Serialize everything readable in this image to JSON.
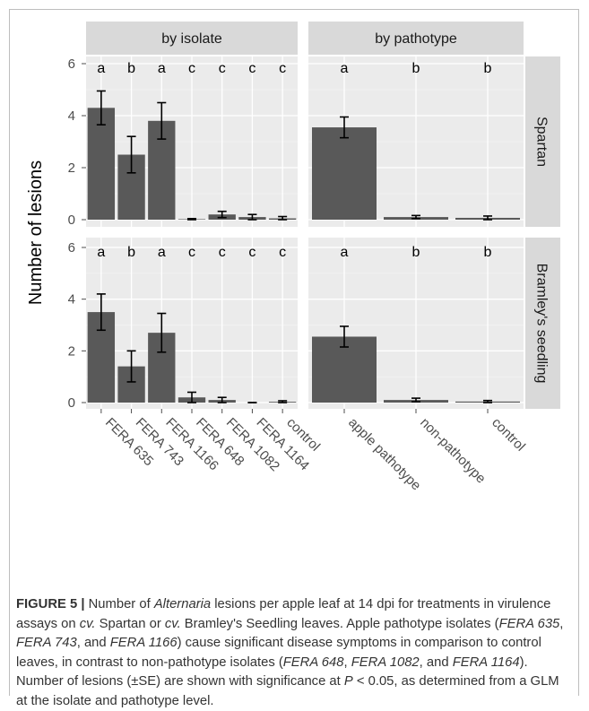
{
  "chart_data": {
    "type": "bar",
    "ylabel": "Number of lesions",
    "ylim": [
      0,
      6
    ],
    "yticks": [
      0,
      2,
      4,
      6
    ],
    "grid": true,
    "facet_columns": [
      "by isolate",
      "by pathotype"
    ],
    "facet_rows": [
      "Spartan",
      "Bramley's seedling"
    ],
    "panels": [
      {
        "column": "by isolate",
        "row": "Spartan",
        "categories": [
          "FERA 635",
          "FERA 743",
          "FERA 1166",
          "FERA 648",
          "FERA 1082",
          "FERA 1164",
          "control"
        ],
        "values": [
          4.3,
          2.5,
          3.8,
          0.02,
          0.2,
          0.1,
          0.05
        ],
        "error": [
          0.65,
          0.7,
          0.7,
          0.02,
          0.12,
          0.1,
          0.07
        ],
        "significance": [
          "a",
          "b",
          "a",
          "c",
          "c",
          "c",
          "c"
        ]
      },
      {
        "column": "by pathotype",
        "row": "Spartan",
        "categories": [
          "apple pathotype",
          "non-pathotype",
          "control"
        ],
        "values": [
          3.55,
          0.1,
          0.07
        ],
        "error": [
          0.4,
          0.06,
          0.07
        ],
        "significance": [
          "a",
          "b",
          "b"
        ]
      },
      {
        "column": "by isolate",
        "row": "Bramley's seedling",
        "categories": [
          "FERA 635",
          "FERA 743",
          "FERA 1166",
          "FERA 648",
          "FERA 1082",
          "FERA 1164",
          "control"
        ],
        "values": [
          3.5,
          1.4,
          2.7,
          0.2,
          0.1,
          0.0,
          0.03
        ],
        "error": [
          0.7,
          0.6,
          0.75,
          0.2,
          0.1,
          0.0,
          0.04
        ],
        "significance": [
          "a",
          "b",
          "a",
          "c",
          "c",
          "c",
          "c"
        ]
      },
      {
        "column": "by pathotype",
        "row": "Bramley's seedling",
        "categories": [
          "apple pathotype",
          "non-pathotype",
          "control"
        ],
        "values": [
          2.55,
          0.1,
          0.04
        ],
        "error": [
          0.4,
          0.07,
          0.04
        ],
        "significance": [
          "a",
          "b",
          "b"
        ]
      }
    ]
  },
  "caption": {
    "label": "FIGURE 5 |",
    "p1": " Number of ",
    "i1": "Alternaria",
    "p2": " lesions per apple leaf at 14 dpi for treatments in virulence assays on ",
    "i2": "cv.",
    "p3": " Spartan or ",
    "i3": "cv.",
    "p4": " Bramley's Seedling leaves. Apple pathotype isolates (",
    "i4": "FERA 635",
    "p5": ", ",
    "i5": "FERA 743",
    "p6": ", and ",
    "i6": "FERA 1166",
    "p7": ") cause significant disease symptoms in comparison to control leaves, in contrast to non-pathotype isolates (",
    "i7": "FERA 648",
    "p8": ", ",
    "i8": "FERA 1082",
    "p9": ", and ",
    "i9": "FERA 1164",
    "p10": "). Number of lesions (±SE) are shown with significance at ",
    "i10": "P",
    "p11": " < 0.05, as determined from a GLM at the isolate and pathotype level."
  },
  "colors": {
    "panel_bg": "#ebebeb",
    "strip_bg": "#d9d9d9",
    "bar": "#595959",
    "grid": "#ffffff",
    "text": "#000000"
  }
}
